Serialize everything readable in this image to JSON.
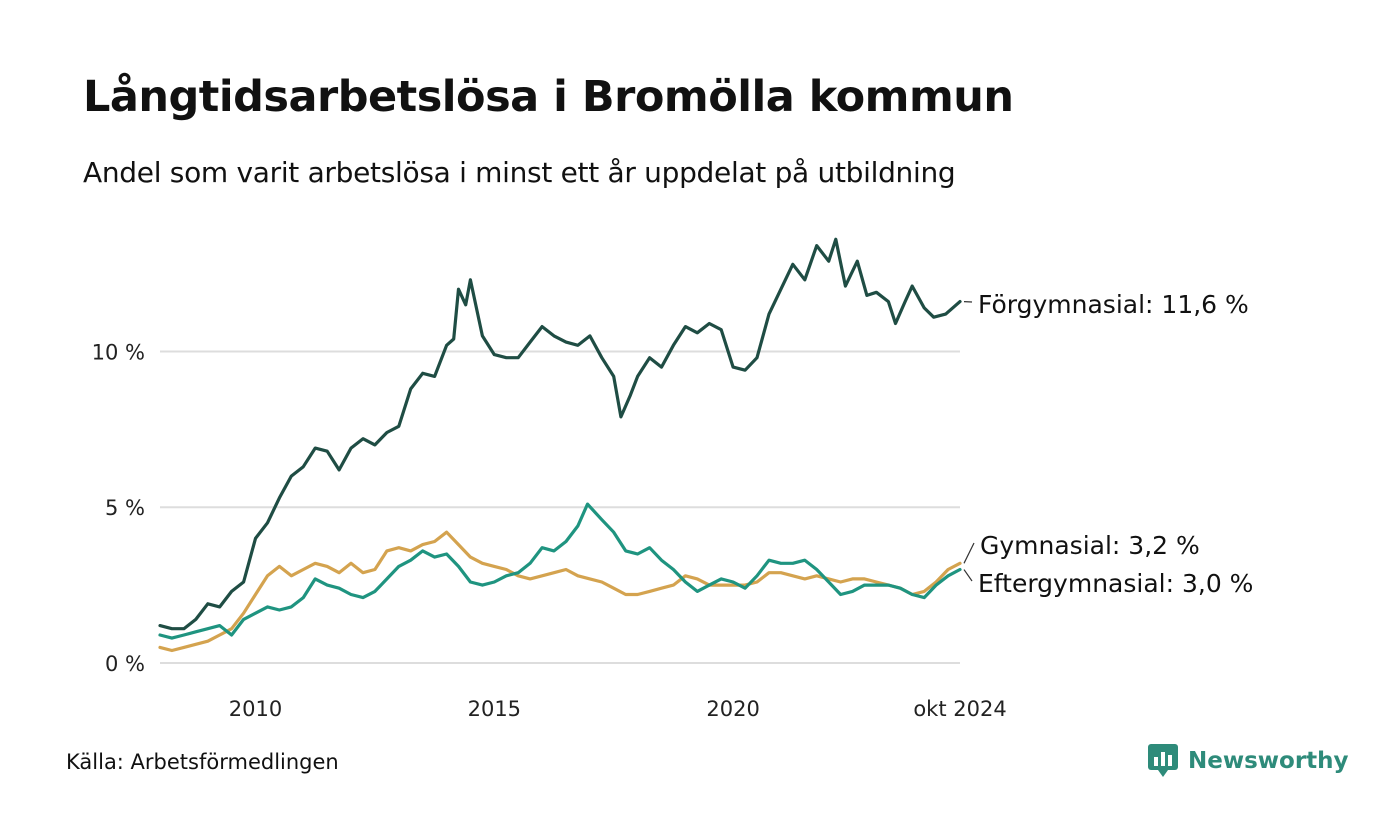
{
  "header": {
    "title": "Långtidsarbetslösa i Bromölla kommun",
    "subtitle": "Andel som varit arbetslösa i minst ett år uppdelat på utbildning"
  },
  "footer": {
    "source": "Källa: Arbetsförmedlingen",
    "brand": "Newsworthy",
    "brand_icon": "bar-chart-speech-icon"
  },
  "colors": {
    "forgymnasial": "#1f4d44",
    "gymnasial": "#d4a34f",
    "eftergymnasial": "#1f9480",
    "grid": "#dddddd",
    "brand": "#2e8b7a"
  },
  "chart_data": {
    "type": "line",
    "ylim": [
      0,
      14
    ],
    "y_ticks": [
      {
        "value": 0,
        "label": "0 %"
      },
      {
        "value": 5,
        "label": "5 %"
      },
      {
        "value": 10,
        "label": "10 %"
      }
    ],
    "x_range": [
      2008.0,
      2024.75
    ],
    "x_ticks": [
      {
        "value": 2010,
        "label": "2010"
      },
      {
        "value": 2015,
        "label": "2015"
      },
      {
        "value": 2020,
        "label": "2020"
      },
      {
        "value": 2024.75,
        "label": "okt 2024"
      }
    ],
    "grid": "horizontal",
    "series": [
      {
        "name": "Förgymnasial",
        "label": "Förgymnasial: 11,6 %",
        "color": "#1f4d44",
        "points": [
          [
            2008.0,
            1.2
          ],
          [
            2008.25,
            1.1
          ],
          [
            2008.5,
            1.1
          ],
          [
            2008.75,
            1.4
          ],
          [
            2009.0,
            1.9
          ],
          [
            2009.25,
            1.8
          ],
          [
            2009.5,
            2.3
          ],
          [
            2009.75,
            2.6
          ],
          [
            2010.0,
            4.0
          ],
          [
            2010.25,
            4.5
          ],
          [
            2010.5,
            5.3
          ],
          [
            2010.75,
            6.0
          ],
          [
            2011.0,
            6.3
          ],
          [
            2011.25,
            6.9
          ],
          [
            2011.5,
            6.8
          ],
          [
            2011.75,
            6.2
          ],
          [
            2012.0,
            6.9
          ],
          [
            2012.25,
            7.2
          ],
          [
            2012.5,
            7.0
          ],
          [
            2012.75,
            7.4
          ],
          [
            2013.0,
            7.6
          ],
          [
            2013.25,
            8.8
          ],
          [
            2013.5,
            9.3
          ],
          [
            2013.75,
            9.2
          ],
          [
            2014.0,
            10.2
          ],
          [
            2014.15,
            10.4
          ],
          [
            2014.25,
            12.0
          ],
          [
            2014.4,
            11.5
          ],
          [
            2014.5,
            12.3
          ],
          [
            2014.75,
            10.5
          ],
          [
            2015.0,
            9.9
          ],
          [
            2015.25,
            9.8
          ],
          [
            2015.5,
            9.8
          ],
          [
            2015.75,
            10.3
          ],
          [
            2016.0,
            10.8
          ],
          [
            2016.25,
            10.5
          ],
          [
            2016.5,
            10.3
          ],
          [
            2016.75,
            10.2
          ],
          [
            2017.0,
            10.5
          ],
          [
            2017.25,
            9.8
          ],
          [
            2017.5,
            9.2
          ],
          [
            2017.65,
            7.9
          ],
          [
            2017.85,
            8.6
          ],
          [
            2018.0,
            9.2
          ],
          [
            2018.25,
            9.8
          ],
          [
            2018.5,
            9.5
          ],
          [
            2018.75,
            10.2
          ],
          [
            2019.0,
            10.8
          ],
          [
            2019.25,
            10.6
          ],
          [
            2019.5,
            10.9
          ],
          [
            2019.75,
            10.7
          ],
          [
            2020.0,
            9.5
          ],
          [
            2020.25,
            9.4
          ],
          [
            2020.5,
            9.8
          ],
          [
            2020.75,
            11.2
          ],
          [
            2021.0,
            12.0
          ],
          [
            2021.25,
            12.8
          ],
          [
            2021.5,
            12.3
          ],
          [
            2021.75,
            13.4
          ],
          [
            2022.0,
            12.9
          ],
          [
            2022.15,
            13.6
          ],
          [
            2022.35,
            12.1
          ],
          [
            2022.6,
            12.9
          ],
          [
            2022.8,
            11.8
          ],
          [
            2023.0,
            11.9
          ],
          [
            2023.25,
            11.6
          ],
          [
            2023.4,
            10.9
          ],
          [
            2023.6,
            11.6
          ],
          [
            2023.75,
            12.1
          ],
          [
            2024.0,
            11.4
          ],
          [
            2024.2,
            11.1
          ],
          [
            2024.45,
            11.2
          ],
          [
            2024.75,
            11.6
          ]
        ]
      },
      {
        "name": "Gymnasial",
        "label": "Gymnasial:  3,2 %",
        "color": "#d4a34f",
        "points": [
          [
            2008.0,
            0.5
          ],
          [
            2008.25,
            0.4
          ],
          [
            2008.5,
            0.5
          ],
          [
            2008.75,
            0.6
          ],
          [
            2009.0,
            0.7
          ],
          [
            2009.25,
            0.9
          ],
          [
            2009.5,
            1.1
          ],
          [
            2009.75,
            1.6
          ],
          [
            2010.0,
            2.2
          ],
          [
            2010.25,
            2.8
          ],
          [
            2010.5,
            3.1
          ],
          [
            2010.75,
            2.8
          ],
          [
            2011.0,
            3.0
          ],
          [
            2011.25,
            3.2
          ],
          [
            2011.5,
            3.1
          ],
          [
            2011.75,
            2.9
          ],
          [
            2012.0,
            3.2
          ],
          [
            2012.25,
            2.9
          ],
          [
            2012.5,
            3.0
          ],
          [
            2012.75,
            3.6
          ],
          [
            2013.0,
            3.7
          ],
          [
            2013.25,
            3.6
          ],
          [
            2013.5,
            3.8
          ],
          [
            2013.75,
            3.9
          ],
          [
            2014.0,
            4.2
          ],
          [
            2014.25,
            3.8
          ],
          [
            2014.5,
            3.4
          ],
          [
            2014.75,
            3.2
          ],
          [
            2015.0,
            3.1
          ],
          [
            2015.25,
            3.0
          ],
          [
            2015.5,
            2.8
          ],
          [
            2015.75,
            2.7
          ],
          [
            2016.0,
            2.8
          ],
          [
            2016.25,
            2.9
          ],
          [
            2016.5,
            3.0
          ],
          [
            2016.75,
            2.8
          ],
          [
            2017.0,
            2.7
          ],
          [
            2017.25,
            2.6
          ],
          [
            2017.5,
            2.4
          ],
          [
            2017.75,
            2.2
          ],
          [
            2018.0,
            2.2
          ],
          [
            2018.25,
            2.3
          ],
          [
            2018.5,
            2.4
          ],
          [
            2018.75,
            2.5
          ],
          [
            2019.0,
            2.8
          ],
          [
            2019.25,
            2.7
          ],
          [
            2019.5,
            2.5
          ],
          [
            2019.75,
            2.5
          ],
          [
            2020.0,
            2.5
          ],
          [
            2020.25,
            2.5
          ],
          [
            2020.5,
            2.6
          ],
          [
            2020.75,
            2.9
          ],
          [
            2021.0,
            2.9
          ],
          [
            2021.25,
            2.8
          ],
          [
            2021.5,
            2.7
          ],
          [
            2021.75,
            2.8
          ],
          [
            2022.0,
            2.7
          ],
          [
            2022.25,
            2.6
          ],
          [
            2022.5,
            2.7
          ],
          [
            2022.75,
            2.7
          ],
          [
            2023.0,
            2.6
          ],
          [
            2023.25,
            2.5
          ],
          [
            2023.5,
            2.4
          ],
          [
            2023.75,
            2.2
          ],
          [
            2024.0,
            2.3
          ],
          [
            2024.25,
            2.6
          ],
          [
            2024.5,
            3.0
          ],
          [
            2024.75,
            3.2
          ]
        ]
      },
      {
        "name": "Eftergymnasial",
        "label": "Eftergymnasial:  3,0 %",
        "color": "#1f9480",
        "points": [
          [
            2008.0,
            0.9
          ],
          [
            2008.25,
            0.8
          ],
          [
            2008.5,
            0.9
          ],
          [
            2008.75,
            1.0
          ],
          [
            2009.0,
            1.1
          ],
          [
            2009.25,
            1.2
          ],
          [
            2009.5,
            0.9
          ],
          [
            2009.75,
            1.4
          ],
          [
            2010.0,
            1.6
          ],
          [
            2010.25,
            1.8
          ],
          [
            2010.5,
            1.7
          ],
          [
            2010.75,
            1.8
          ],
          [
            2011.0,
            2.1
          ],
          [
            2011.25,
            2.7
          ],
          [
            2011.5,
            2.5
          ],
          [
            2011.75,
            2.4
          ],
          [
            2012.0,
            2.2
          ],
          [
            2012.25,
            2.1
          ],
          [
            2012.5,
            2.3
          ],
          [
            2012.75,
            2.7
          ],
          [
            2013.0,
            3.1
          ],
          [
            2013.25,
            3.3
          ],
          [
            2013.5,
            3.6
          ],
          [
            2013.75,
            3.4
          ],
          [
            2014.0,
            3.5
          ],
          [
            2014.25,
            3.1
          ],
          [
            2014.5,
            2.6
          ],
          [
            2014.75,
            2.5
          ],
          [
            2015.0,
            2.6
          ],
          [
            2015.25,
            2.8
          ],
          [
            2015.5,
            2.9
          ],
          [
            2015.75,
            3.2
          ],
          [
            2016.0,
            3.7
          ],
          [
            2016.25,
            3.6
          ],
          [
            2016.5,
            3.9
          ],
          [
            2016.75,
            4.4
          ],
          [
            2016.95,
            5.1
          ],
          [
            2017.25,
            4.6
          ],
          [
            2017.5,
            4.2
          ],
          [
            2017.75,
            3.6
          ],
          [
            2018.0,
            3.5
          ],
          [
            2018.25,
            3.7
          ],
          [
            2018.5,
            3.3
          ],
          [
            2018.75,
            3.0
          ],
          [
            2019.0,
            2.6
          ],
          [
            2019.25,
            2.3
          ],
          [
            2019.5,
            2.5
          ],
          [
            2019.75,
            2.7
          ],
          [
            2020.0,
            2.6
          ],
          [
            2020.25,
            2.4
          ],
          [
            2020.5,
            2.8
          ],
          [
            2020.75,
            3.3
          ],
          [
            2021.0,
            3.2
          ],
          [
            2021.25,
            3.2
          ],
          [
            2021.5,
            3.3
          ],
          [
            2021.75,
            3.0
          ],
          [
            2022.0,
            2.6
          ],
          [
            2022.25,
            2.2
          ],
          [
            2022.5,
            2.3
          ],
          [
            2022.75,
            2.5
          ],
          [
            2023.0,
            2.5
          ],
          [
            2023.25,
            2.5
          ],
          [
            2023.5,
            2.4
          ],
          [
            2023.75,
            2.2
          ],
          [
            2024.0,
            2.1
          ],
          [
            2024.25,
            2.5
          ],
          [
            2024.5,
            2.8
          ],
          [
            2024.75,
            3.0
          ]
        ]
      }
    ]
  }
}
